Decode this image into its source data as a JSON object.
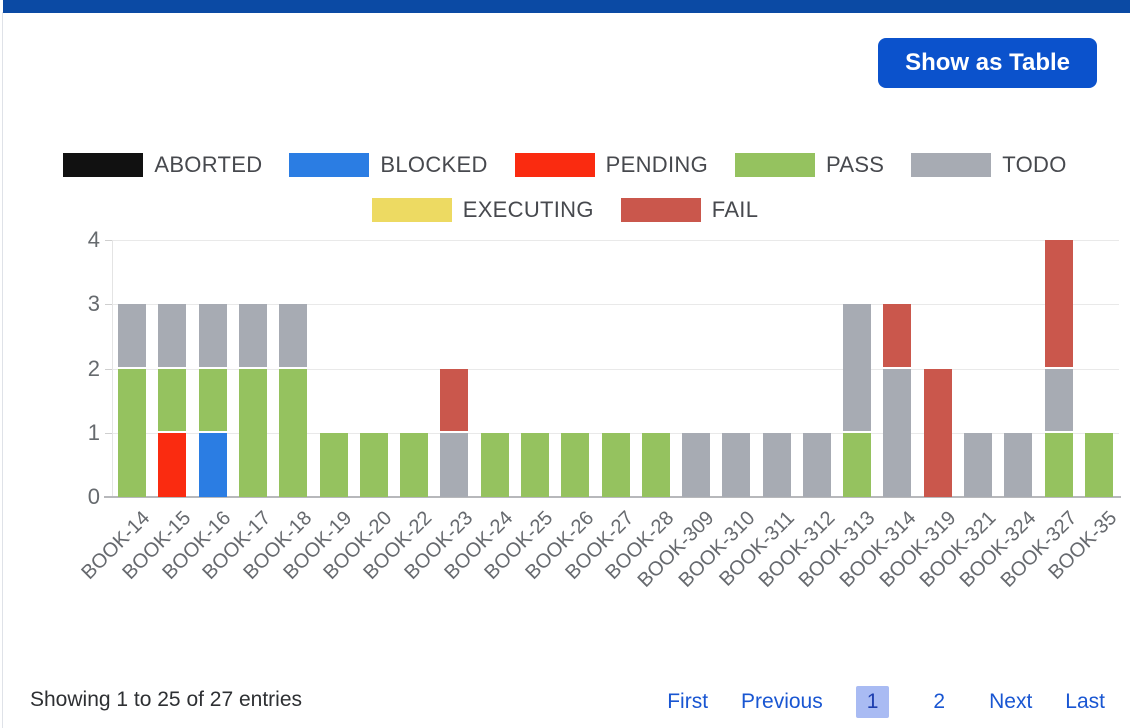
{
  "theme": {
    "topbar_color": "#0b4aa4",
    "button_color": "#0b52cc",
    "link_color": "#1956d2",
    "active_page_bg": "#a9bbf3",
    "active_page_color": "#1d3eae",
    "grid_color": "#e9e9e9",
    "axis_text_color": "#666a6e"
  },
  "header": {
    "show_as_table_label": "Show as Table"
  },
  "chart_data": {
    "type": "bar",
    "stacked": true,
    "grid": true,
    "ylim": [
      0,
      4
    ],
    "yticks": [
      0,
      1,
      2,
      3,
      4
    ],
    "legend_position": "top",
    "legend_rows": [
      [
        "ABORTED",
        "BLOCKED",
        "PENDING",
        "PASS",
        "TODO"
      ],
      [
        "EXECUTING",
        "FAIL"
      ]
    ],
    "categories": [
      "BOOK-14",
      "BOOK-15",
      "BOOK-16",
      "BOOK-17",
      "BOOK-18",
      "BOOK-19",
      "BOOK-20",
      "BOOK-22",
      "BOOK-23",
      "BOOK-24",
      "BOOK-25",
      "BOOK-26",
      "BOOK-27",
      "BOOK-28",
      "BOOK-309",
      "BOOK-310",
      "BOOK-311",
      "BOOK-312",
      "BOOK-313",
      "BOOK-314",
      "BOOK-319",
      "BOOK-321",
      "BOOK-324",
      "BOOK-327",
      "BOOK-35"
    ],
    "series": [
      {
        "name": "ABORTED",
        "color": "#111111",
        "values": [
          0,
          0,
          0,
          0,
          0,
          0,
          0,
          0,
          0,
          0,
          0,
          0,
          0,
          0,
          0,
          0,
          0,
          0,
          0,
          0,
          0,
          0,
          0,
          0,
          0
        ]
      },
      {
        "name": "BLOCKED",
        "color": "#2b7de3",
        "values": [
          0,
          0,
          1,
          0,
          0,
          0,
          0,
          0,
          0,
          0,
          0,
          0,
          0,
          0,
          0,
          0,
          0,
          0,
          0,
          0,
          0,
          0,
          0,
          0,
          0
        ]
      },
      {
        "name": "PENDING",
        "color": "#fa2b10",
        "values": [
          0,
          1,
          0,
          0,
          0,
          0,
          0,
          0,
          0,
          0,
          0,
          0,
          0,
          0,
          0,
          0,
          0,
          0,
          0,
          0,
          0,
          0,
          0,
          0,
          0
        ]
      },
      {
        "name": "PASS",
        "color": "#95c25f",
        "values": [
          2,
          1,
          1,
          2,
          2,
          1,
          1,
          1,
          0,
          1,
          1,
          1,
          1,
          1,
          0,
          0,
          0,
          0,
          1,
          0,
          0,
          0,
          0,
          1,
          1
        ]
      },
      {
        "name": "TODO",
        "color": "#a7abb3",
        "values": [
          1,
          1,
          1,
          1,
          1,
          0,
          0,
          0,
          1,
          0,
          0,
          0,
          0,
          0,
          1,
          1,
          1,
          1,
          2,
          2,
          0,
          1,
          1,
          1,
          0
        ]
      },
      {
        "name": "EXECUTING",
        "color": "#edda62",
        "values": [
          0,
          0,
          0,
          0,
          0,
          0,
          0,
          0,
          0,
          0,
          0,
          0,
          0,
          0,
          0,
          0,
          0,
          0,
          0,
          0,
          0,
          0,
          0,
          0,
          0
        ]
      },
      {
        "name": "FAIL",
        "color": "#ca574c",
        "values": [
          0,
          0,
          0,
          0,
          0,
          0,
          0,
          0,
          1,
          0,
          0,
          0,
          0,
          0,
          0,
          0,
          0,
          0,
          0,
          1,
          2,
          0,
          0,
          2,
          0
        ]
      }
    ]
  },
  "footer": {
    "showing_text": "Showing 1 to 25 of 27 entries",
    "pagination": {
      "first_label": "First",
      "previous_label": "Previous",
      "pages": [
        "1",
        "2"
      ],
      "active_page": "1",
      "next_label": "Next",
      "last_label": "Last"
    }
  }
}
